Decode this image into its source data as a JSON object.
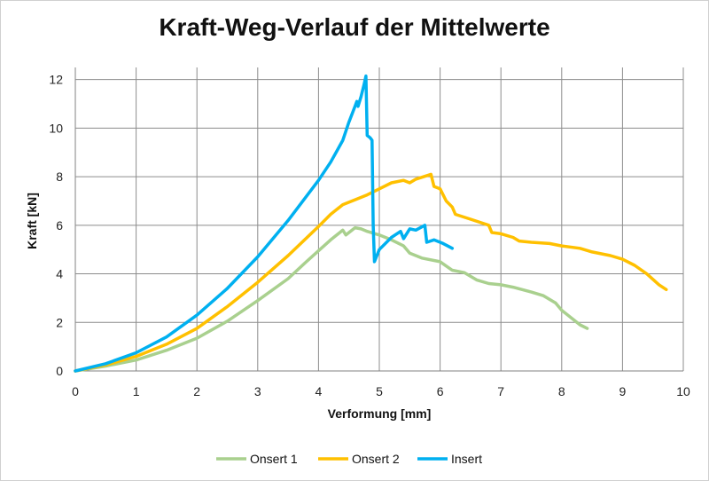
{
  "chart_data": {
    "type": "line",
    "title": "Kraft-Weg-Verlauf der Mittelwerte",
    "xlabel": "Verformung [mm]",
    "ylabel": "Kraft  [kN]",
    "xlim": [
      0,
      10
    ],
    "ylim": [
      0,
      12.5
    ],
    "xticks": [
      "0",
      "1",
      "2",
      "3",
      "4",
      "5",
      "6",
      "7",
      "8",
      "9",
      "10"
    ],
    "yticks": [
      "0",
      "2",
      "4",
      "6",
      "8",
      "10",
      "12"
    ],
    "grid": true,
    "legend_position": "bottom",
    "series": [
      {
        "name": "Onsert 1",
        "color": "#a9d08e",
        "points": [
          [
            0,
            0
          ],
          [
            0.5,
            0.2
          ],
          [
            1,
            0.45
          ],
          [
            1.5,
            0.85
          ],
          [
            2,
            1.35
          ],
          [
            2.5,
            2.05
          ],
          [
            3,
            2.9
          ],
          [
            3.5,
            3.8
          ],
          [
            3.8,
            4.5
          ],
          [
            4,
            4.95
          ],
          [
            4.2,
            5.4
          ],
          [
            4.4,
            5.8
          ],
          [
            4.45,
            5.6
          ],
          [
            4.6,
            5.9
          ],
          [
            4.7,
            5.85
          ],
          [
            4.8,
            5.75
          ],
          [
            5,
            5.6
          ],
          [
            5.2,
            5.4
          ],
          [
            5.4,
            5.15
          ],
          [
            5.5,
            4.85
          ],
          [
            5.7,
            4.65
          ],
          [
            6,
            4.5
          ],
          [
            6.2,
            4.15
          ],
          [
            6.4,
            4.05
          ],
          [
            6.6,
            3.75
          ],
          [
            6.8,
            3.6
          ],
          [
            7,
            3.55
          ],
          [
            7.2,
            3.45
          ],
          [
            7.5,
            3.25
          ],
          [
            7.7,
            3.1
          ],
          [
            7.9,
            2.8
          ],
          [
            8,
            2.5
          ],
          [
            8.2,
            2.1
          ],
          [
            8.3,
            1.9
          ],
          [
            8.42,
            1.75
          ]
        ]
      },
      {
        "name": "Onsert 2",
        "color": "#ffc000",
        "points": [
          [
            0,
            0
          ],
          [
            0.5,
            0.25
          ],
          [
            1,
            0.6
          ],
          [
            1.5,
            1.1
          ],
          [
            2,
            1.75
          ],
          [
            2.5,
            2.65
          ],
          [
            3,
            3.65
          ],
          [
            3.5,
            4.75
          ],
          [
            4,
            5.95
          ],
          [
            4.2,
            6.45
          ],
          [
            4.4,
            6.85
          ],
          [
            4.6,
            7.05
          ],
          [
            4.8,
            7.25
          ],
          [
            5,
            7.5
          ],
          [
            5.2,
            7.75
          ],
          [
            5.4,
            7.85
          ],
          [
            5.5,
            7.75
          ],
          [
            5.6,
            7.9
          ],
          [
            5.85,
            8.1
          ],
          [
            5.9,
            7.6
          ],
          [
            6,
            7.5
          ],
          [
            6.1,
            7.0
          ],
          [
            6.2,
            6.75
          ],
          [
            6.25,
            6.45
          ],
          [
            6.5,
            6.25
          ],
          [
            6.8,
            6.0
          ],
          [
            6.85,
            5.7
          ],
          [
            7,
            5.65
          ],
          [
            7.2,
            5.5
          ],
          [
            7.3,
            5.35
          ],
          [
            7.5,
            5.3
          ],
          [
            7.8,
            5.25
          ],
          [
            8,
            5.15
          ],
          [
            8.3,
            5.05
          ],
          [
            8.5,
            4.9
          ],
          [
            8.8,
            4.75
          ],
          [
            9,
            4.6
          ],
          [
            9.2,
            4.35
          ],
          [
            9.4,
            4.0
          ],
          [
            9.6,
            3.55
          ],
          [
            9.72,
            3.35
          ]
        ]
      },
      {
        "name": "Insert",
        "color": "#00b0f0",
        "points": [
          [
            0,
            0
          ],
          [
            0.5,
            0.3
          ],
          [
            1,
            0.75
          ],
          [
            1.5,
            1.4
          ],
          [
            2,
            2.3
          ],
          [
            2.5,
            3.4
          ],
          [
            3,
            4.7
          ],
          [
            3.5,
            6.2
          ],
          [
            4,
            7.85
          ],
          [
            4.2,
            8.6
          ],
          [
            4.4,
            9.5
          ],
          [
            4.5,
            10.25
          ],
          [
            4.6,
            10.9
          ],
          [
            4.63,
            11.1
          ],
          [
            4.65,
            10.9
          ],
          [
            4.7,
            11.3
          ],
          [
            4.75,
            11.8
          ],
          [
            4.78,
            12.15
          ],
          [
            4.8,
            9.7
          ],
          [
            4.85,
            9.6
          ],
          [
            4.88,
            9.5
          ],
          [
            4.9,
            6.0
          ],
          [
            4.92,
            4.5
          ],
          [
            5,
            5.0
          ],
          [
            5.2,
            5.5
          ],
          [
            5.35,
            5.75
          ],
          [
            5.4,
            5.45
          ],
          [
            5.5,
            5.85
          ],
          [
            5.6,
            5.8
          ],
          [
            5.75,
            6.0
          ],
          [
            5.78,
            5.3
          ],
          [
            5.9,
            5.4
          ],
          [
            6,
            5.3
          ],
          [
            6.05,
            5.25
          ],
          [
            6.2,
            5.05
          ]
        ]
      }
    ]
  }
}
